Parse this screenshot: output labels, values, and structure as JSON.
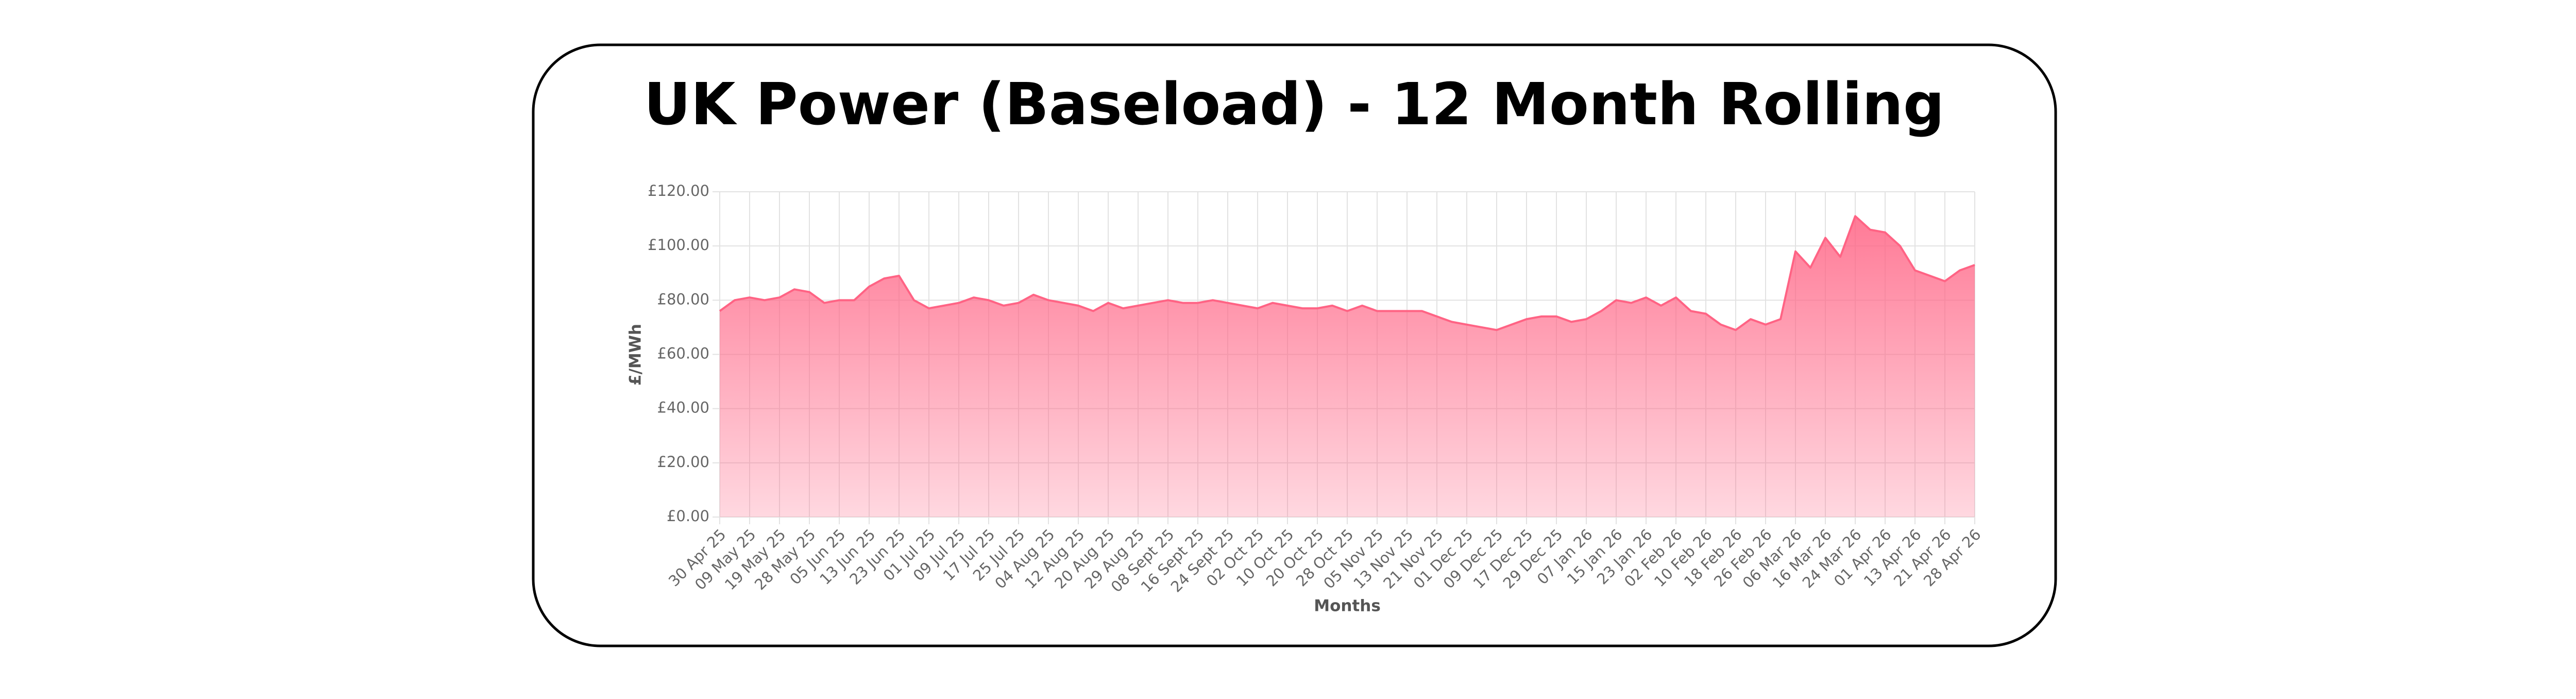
{
  "chart_data": {
    "type": "area",
    "title": "UK Power (Baseload) - 12 Month Rolling",
    "y_label": "£/MWh",
    "x_label": "Months",
    "color": "#ff6384",
    "grid": true,
    "ylim": [
      0,
      120
    ],
    "yticks": [
      {
        "value": 0,
        "label": "£0.00"
      },
      {
        "value": 20,
        "label": "£20.00"
      },
      {
        "value": 40,
        "label": "£40.00"
      },
      {
        "value": 60,
        "label": "£60.00"
      },
      {
        "value": 80,
        "label": "£80.00"
      },
      {
        "value": 100,
        "label": "£100.00"
      },
      {
        "value": 120,
        "label": "£120.00"
      }
    ],
    "categories": [
      "30 Apr 25",
      null,
      "09 May 25",
      null,
      "19 May 25",
      null,
      "28 May 25",
      null,
      "05 Jun 25",
      null,
      "13 Jun 25",
      null,
      "23 Jun 25",
      null,
      "01 Jul 25",
      null,
      "09 Jul 25",
      null,
      "17 Jul 25",
      null,
      "25 Jul 25",
      null,
      "04 Aug 25",
      null,
      "12 Aug 25",
      null,
      "20 Aug 25",
      null,
      "29 Aug 25",
      null,
      "08 Sept 25",
      null,
      "16 Sept 25",
      null,
      "24 Sept 25",
      null,
      "02 Oct 25",
      null,
      "10 Oct 25",
      null,
      "20 Oct 25",
      null,
      "28 Oct 25",
      null,
      "05 Nov 25",
      null,
      "13 Nov 25",
      null,
      "21 Nov 25",
      null,
      "01 Dec 25",
      null,
      "09 Dec 25",
      null,
      "17 Dec 25",
      null,
      "29 Dec 25",
      null,
      "07 Jan 26",
      null,
      "15 Jan 26",
      null,
      "23 Jan 26",
      null,
      "02 Feb 26",
      null,
      "10 Feb 26",
      null,
      "18 Feb 26",
      null,
      "26 Feb 26",
      null,
      "06 Mar 26",
      null,
      "16 Mar 26",
      null,
      "24 Mar 26",
      null,
      "01 Apr 26",
      null,
      "13 Apr 26",
      null,
      "21 Apr 26",
      null,
      "28 Apr 26"
    ],
    "values": [
      76,
      80,
      81,
      80,
      81,
      84,
      83,
      79,
      80,
      80,
      85,
      88,
      89,
      80,
      77,
      78,
      79,
      81,
      80,
      78,
      79,
      82,
      80,
      79,
      78,
      76,
      79,
      77,
      78,
      79,
      80,
      79,
      79,
      80,
      79,
      78,
      77,
      79,
      78,
      77,
      77,
      78,
      76,
      78,
      76,
      76,
      76,
      76,
      74,
      72,
      71,
      70,
      69,
      71,
      73,
      74,
      74,
      72,
      73,
      76,
      80,
      79,
      81,
      78,
      81,
      76,
      75,
      71,
      69,
      73,
      71,
      73,
      98,
      92,
      103,
      96,
      111,
      106,
      105,
      100,
      91,
      89,
      87,
      91,
      93
    ]
  }
}
